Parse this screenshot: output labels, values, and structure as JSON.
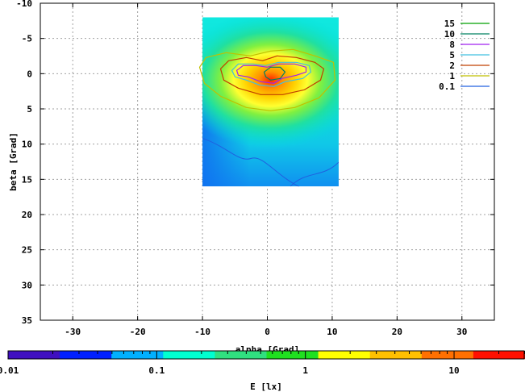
{
  "chart_data": {
    "type": "heatmap",
    "xlabel": "alpha [Grad]",
    "ylabel": "beta [Grad]",
    "xlim": [
      -35,
      35
    ],
    "ylim": [
      35,
      -10
    ],
    "x_ticks": [
      "-30",
      "-20",
      "-10",
      "0",
      "10",
      "20",
      "30"
    ],
    "x_tick_values": [
      -30,
      -20,
      -10,
      0,
      10,
      20,
      30
    ],
    "y_ticks": [
      "-10",
      "-5",
      "0",
      "5",
      "10",
      "15",
      "20",
      "25",
      "30",
      "35"
    ],
    "y_tick_values": [
      -10,
      -5,
      0,
      5,
      10,
      15,
      20,
      25,
      30,
      35
    ],
    "grid": true,
    "heatmap_extent": {
      "x": [
        -10,
        11
      ],
      "y": [
        -8,
        16
      ]
    },
    "peak": {
      "x": 0.5,
      "y": 0,
      "value": 20
    },
    "contour_levels": [
      {
        "name": "15",
        "value": 15,
        "color": "#00a000"
      },
      {
        "name": "10",
        "value": 10,
        "color": "#008060"
      },
      {
        "name": "8",
        "value": 8,
        "color": "#a020f0"
      },
      {
        "name": "5",
        "value": 5,
        "color": "#40c0e0"
      },
      {
        "name": "2",
        "value": 2,
        "color": "#c04000"
      },
      {
        "name": "1",
        "value": 1,
        "color": "#c0c000"
      },
      {
        "name": "0.1",
        "value": 0.1,
        "color": "#2060e0"
      }
    ],
    "legend_position": "top-right",
    "colorbar": {
      "label": "E [lx]",
      "scale": "log",
      "range": [
        0.01,
        30
      ],
      "tick_labels": [
        "0.01",
        "0.1",
        "1",
        "10"
      ],
      "tick_values": [
        0.01,
        0.1,
        1,
        10
      ],
      "colors": [
        "#4010c0",
        "#0020ff",
        "#00b0ff",
        "#00ffd0",
        "#30e080",
        "#20e020",
        "#ffff00",
        "#ffc000",
        "#ff7000",
        "#ff1000"
      ]
    }
  }
}
